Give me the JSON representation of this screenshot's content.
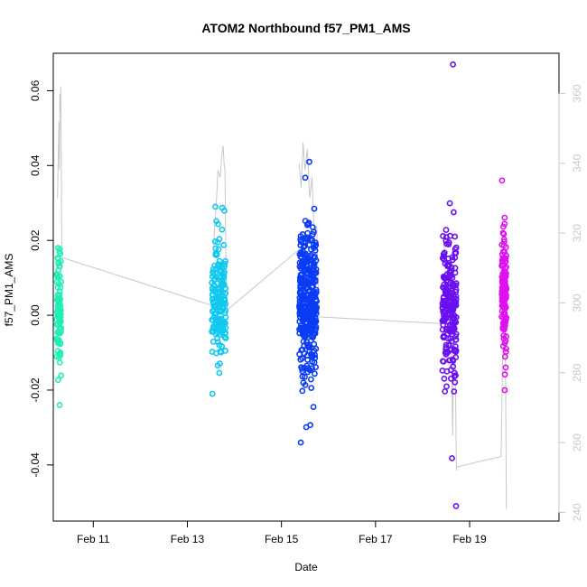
{
  "chart_data": {
    "type": "scatter",
    "title": "ATOM2 Northbound f57_PM1_AMS",
    "xlabel": "Date",
    "ylabel": "f57_PM1_AMS",
    "x_unit": "days in February",
    "xlim": [
      10.15,
      20.9
    ],
    "ylim": [
      -0.055,
      0.07
    ],
    "x_ticks": [
      11,
      13,
      15,
      17,
      19
    ],
    "x_tick_labels": [
      "Feb 11",
      "Feb 13",
      "Feb 15",
      "Feb 17",
      "Feb 19"
    ],
    "y_ticks": [
      -0.04,
      -0.02,
      0.0,
      0.02,
      0.04,
      0.06
    ],
    "y_tick_labels": [
      "-0.04",
      "-0.02",
      "0.00",
      "0.02",
      "0.04",
      "0.06"
    ],
    "y2_ticks": [
      240,
      260,
      280,
      300,
      320,
      340,
      360
    ],
    "y2_tick_labels": [
      "240",
      "260",
      "280",
      "300",
      "320",
      "340",
      "360"
    ],
    "y2lim": [
      237.5,
      371.5
    ],
    "grid": false,
    "legend": "none",
    "colors": {
      "secondary_line": "#c8c8c8",
      "group1": "#00f0a0",
      "group2": "#00b4f0",
      "group3": "#0030ff",
      "group4": "#6000ff",
      "group5": "#e000f0"
    },
    "point_groups": [
      {
        "color": "#1ef0b4",
        "x_range": [
          10.22,
          10.32
        ],
        "y_min": -0.024,
        "y_max": 0.018,
        "y_center": 0.002,
        "y_spread": 0.008,
        "count": 90
      },
      {
        "color": "#10c8f0",
        "x_range": [
          13.52,
          13.82
        ],
        "y_min": -0.021,
        "y_max": 0.029,
        "y_center": 0.004,
        "y_spread": 0.008,
        "count": 170
      },
      {
        "color": "#0a3cf5",
        "x_range": [
          15.38,
          15.75
        ],
        "y_min": -0.034,
        "y_max": 0.041,
        "y_center": 0.004,
        "y_spread": 0.01,
        "count": 360
      },
      {
        "color": "#6a10f0",
        "x_range": [
          18.42,
          18.72
        ],
        "y_min": -0.051,
        "y_max": 0.067,
        "y_center": 0.002,
        "y_spread": 0.01,
        "count": 220
      },
      {
        "color": "#e010f0",
        "x_range": [
          19.68,
          19.78
        ],
        "y_min": -0.02,
        "y_max": 0.036,
        "y_center": 0.007,
        "y_spread": 0.008,
        "count": 140
      }
    ],
    "secondary_series": [
      {
        "x": [
          10.24,
          10.26,
          10.27,
          10.28,
          10.29,
          10.3,
          10.31,
          10.32,
          10.33
        ],
        "y2": [
          330,
          345,
          352,
          338,
          360,
          355,
          362,
          340,
          313
        ]
      },
      {
        "x": [
          10.33,
          13.82
        ],
        "y2": [
          313,
          298
        ]
      },
      {
        "x": [
          13.55,
          13.62,
          13.65,
          13.7,
          13.73,
          13.76,
          13.78,
          13.8,
          13.82,
          13.85
        ],
        "y2": [
          315,
          330,
          338,
          336,
          342,
          345,
          340,
          338,
          310,
          298
        ]
      },
      {
        "x": [
          13.85,
          15.35
        ],
        "y2": [
          298,
          315
        ]
      },
      {
        "x": [
          15.38,
          15.42,
          15.46,
          15.5,
          15.55,
          15.6,
          15.65,
          15.7,
          15.75,
          15.8
        ],
        "y2": [
          340,
          333,
          346,
          338,
          344,
          330,
          336,
          318,
          322,
          296
        ]
      },
      {
        "x": [
          15.8,
          18.5
        ],
        "y2": [
          296,
          294
        ]
      },
      {
        "x": [
          18.45,
          18.5,
          18.55,
          18.6,
          18.64,
          18.66,
          18.68,
          18.72
        ],
        "y2": [
          318,
          305,
          300,
          296,
          262,
          290,
          300,
          252
        ]
      },
      {
        "x": [
          18.72,
          19.67
        ],
        "y2": [
          253,
          256
        ]
      },
      {
        "x": [
          19.67,
          19.72,
          19.75,
          19.78
        ],
        "y2": [
          256,
          300,
          315,
          241
        ]
      }
    ]
  }
}
